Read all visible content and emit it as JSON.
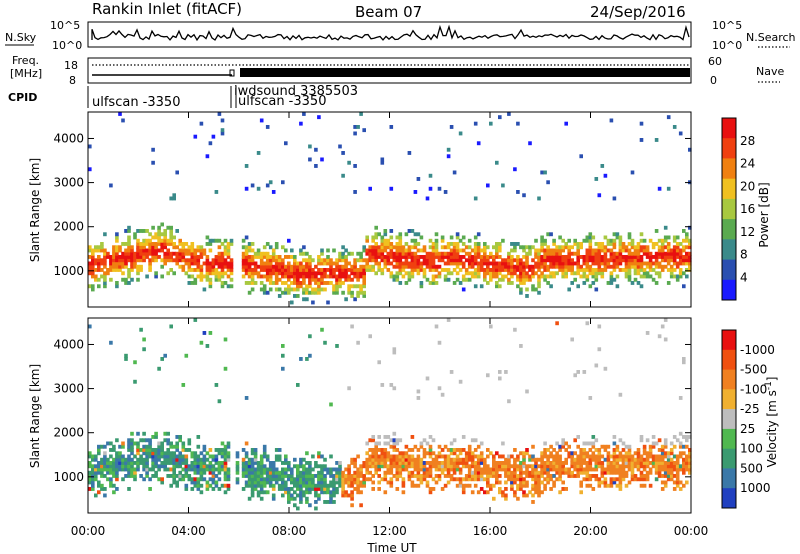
{
  "header": {
    "station": "Rankin Inlet (fitACF)",
    "beam": "Beam 07",
    "date": "24/Sep/2016"
  },
  "top_panels": {
    "nsky_label": "N.Sky",
    "nsearch_label": "N.Search",
    "nsky_ticks": [
      "10^5",
      "10^0"
    ],
    "freq_label_1": "Freq.",
    "freq_label_2": "[MHz]",
    "freq_ticks": [
      "18",
      "8"
    ],
    "nave_label": "Nave",
    "nave_ticks": [
      "60",
      "0"
    ],
    "cpid_label": "CPID",
    "cpid_entries": [
      {
        "text": "ulfscan -3350",
        "slot": 0
      },
      {
        "text": "iwdsound 3385503",
        "slot": 1
      },
      {
        "text": "ulfscan -3350",
        "slot": 2
      }
    ]
  },
  "chart_data": [
    {
      "type": "heatmap",
      "name": "power",
      "ylabel": "Slant Range [km]",
      "yticks": [
        1000,
        2000,
        3000,
        4000
      ],
      "ylim": [
        180,
        4600
      ],
      "xlim": [
        0,
        24
      ],
      "xticks": [
        "00:00",
        "04:00",
        "08:00",
        "12:00",
        "16:00",
        "20:00",
        "00:00"
      ],
      "colorbar_label": "Power [dB]",
      "colorbar_ticks": [
        "4",
        "8",
        "12",
        "16",
        "20",
        "24",
        "28"
      ],
      "colorbar_colors": [
        "#1a1aff",
        "#2a4fb0",
        "#3a8a8a",
        "#5aaa50",
        "#a8c840",
        "#f0c020",
        "#f08010",
        "#f04010",
        "#e81010"
      ]
    },
    {
      "type": "heatmap",
      "name": "velocity",
      "ylabel": "Slant Range [km]",
      "yticks": [
        1000,
        2000,
        3000,
        4000
      ],
      "ylim": [
        180,
        4600
      ],
      "xlim": [
        0,
        24
      ],
      "xticks": [
        "00:00",
        "04:00",
        "08:00",
        "12:00",
        "16:00",
        "20:00",
        "00:00"
      ],
      "xlabel": "Time UT",
      "colorbar_label": "Velocity [m s^-1]",
      "colorbar_ticks": [
        "1000",
        "500",
        "100",
        "25",
        "-25",
        "-100",
        "-500",
        "-1000"
      ],
      "colorbar_colors": [
        "#2040c0",
        "#3a78a8",
        "#3a9a70",
        "#50b850",
        "#bdbdbd",
        "#f0b030",
        "#f08020",
        "#f05010",
        "#e81010"
      ]
    }
  ]
}
